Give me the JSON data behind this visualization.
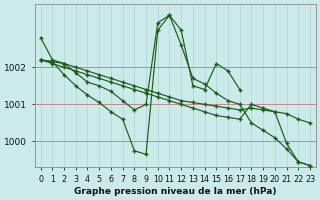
{
  "bg_color": "#cceaea",
  "grid_color": "#aad4d4",
  "line_color": "#1a5c1a",
  "marker_color": "#1a5c1a",
  "xlabel": "Graphe pression niveau de la mer (hPa)",
  "xlabel_fontsize": 6.5,
  "ylabel_fontsize": 6.5,
  "tick_fontsize": 5.8,
  "xlim": [
    -0.5,
    23.5
  ],
  "ylim": [
    999.3,
    1003.7
  ],
  "yticks": [
    1000,
    1001,
    1002
  ],
  "ytick_labels": [
    "1000",
    "1001",
    "1002"
  ],
  "xticks": [
    0,
    1,
    2,
    3,
    4,
    5,
    6,
    7,
    8,
    9,
    10,
    11,
    12,
    13,
    14,
    15,
    16,
    17,
    18,
    19,
    20,
    21,
    22,
    23
  ],
  "hgrid_color": "#c08080",
  "series": [
    [
      1002.8,
      1002.2,
      1002.1,
      1002.0,
      1001.9,
      1001.8,
      1001.7,
      1001.6,
      1001.5,
      1001.4,
      1001.3,
      1001.2,
      1001.1,
      1001.05,
      1001.0,
      1000.95,
      1000.9,
      1000.85,
      1000.9,
      1000.85,
      1000.8,
      1000.75,
      1000.6,
      1000.5
    ],
    [
      1002.2,
      1002.15,
      1002.1,
      1001.85,
      1001.6,
      1001.5,
      1001.35,
      1001.1,
      1000.85,
      1001.0,
      1003.2,
      1003.4,
      1003.0,
      1001.5,
      1001.4,
      1002.1,
      1001.9,
      1001.4,
      null,
      null,
      null,
      null,
      null,
      null
    ],
    [
      1002.2,
      1002.15,
      1001.8,
      1001.5,
      1001.25,
      1001.05,
      1000.8,
      1000.6,
      999.75,
      999.65,
      1003.0,
      1003.4,
      1002.6,
      1001.7,
      1001.55,
      1001.3,
      1001.1,
      1001.0,
      1000.5,
      1000.3,
      1000.1,
      999.8,
      999.45,
      999.35
    ],
    [
      1002.2,
      1002.1,
      1002.0,
      1001.9,
      1001.8,
      1001.7,
      1001.6,
      1001.5,
      1001.4,
      1001.3,
      1001.2,
      1001.1,
      1001.0,
      1000.9,
      1000.8,
      1000.7,
      1000.65,
      1000.6,
      1001.0,
      1000.9,
      1000.8,
      999.95,
      999.45,
      999.35
    ]
  ]
}
